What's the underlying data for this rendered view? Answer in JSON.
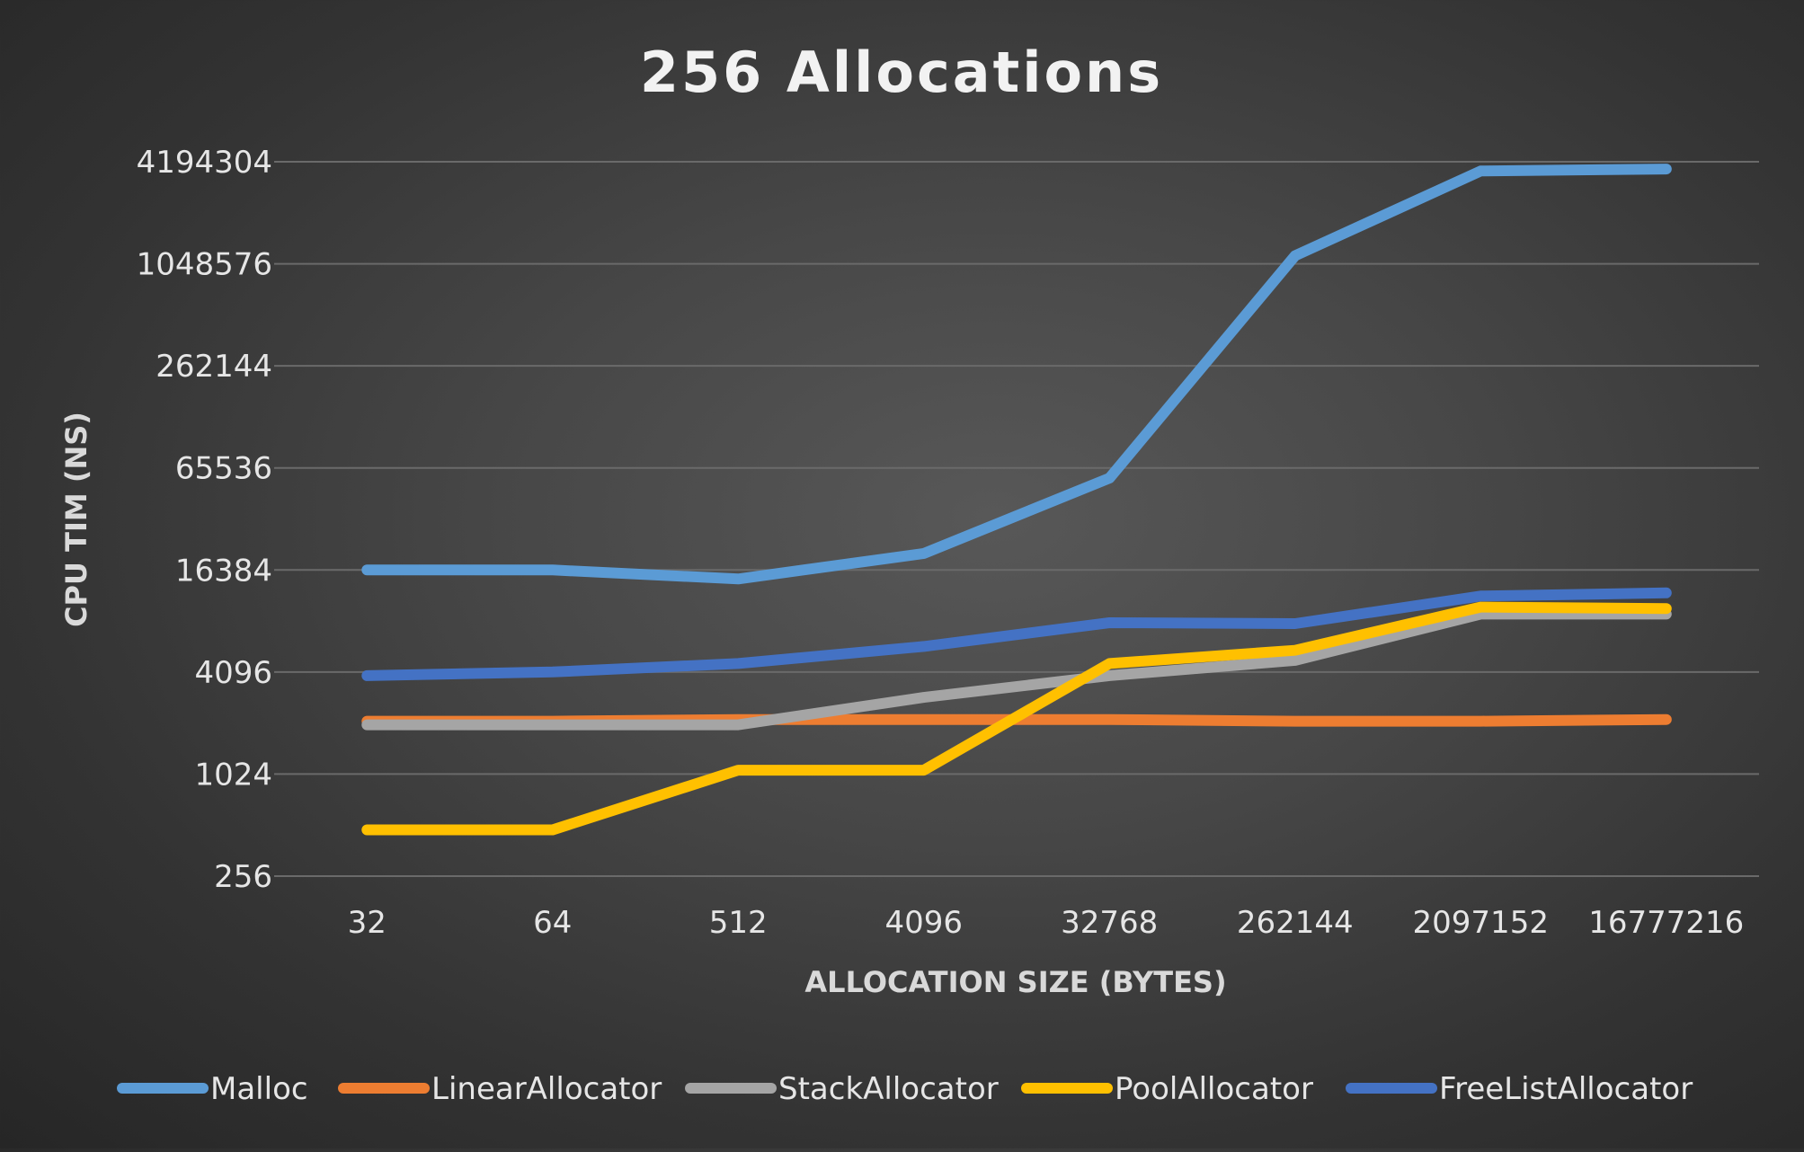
{
  "chart_data": {
    "type": "line",
    "title": "256 Allocations",
    "xlabel": "ALLOCATION SIZE (BYTES)",
    "ylabel": "CPU TIM (NS)",
    "y_scale": "log2",
    "ylim": [
      256,
      4194304
    ],
    "y_ticks": [
      "4194304",
      "1048576",
      "262144",
      "65536",
      "16384",
      "4096",
      "1024",
      "256"
    ],
    "y_tick_values": [
      4194304,
      1048576,
      262144,
      65536,
      16384,
      4096,
      1024,
      256
    ],
    "categories": [
      "32",
      "64",
      "512",
      "4096",
      "32768",
      "262144",
      "2097152",
      "16777216"
    ],
    "grid": "horizontal",
    "legend_position": "bottom",
    "series": [
      {
        "name": "Malloc",
        "color": "#5B9BD5",
        "values": [
          16384,
          16384,
          14500,
          20500,
          57000,
          1170000,
          3700000,
          3800000
        ]
      },
      {
        "name": "LinearAllocator",
        "color": "#ED7D31",
        "values": [
          2100,
          2100,
          2150,
          2150,
          2150,
          2100,
          2100,
          2150
        ]
      },
      {
        "name": "StackAllocator",
        "color": "#A5A5A5",
        "values": [
          2000,
          2000,
          2000,
          2900,
          3900,
          4800,
          9000,
          9000
        ]
      },
      {
        "name": "PoolAllocator",
        "color": "#FFC000",
        "values": [
          480,
          480,
          1080,
          1080,
          4600,
          5500,
          9900,
          9700
        ]
      },
      {
        "name": "FreeListAllocator",
        "color": "#4472C4",
        "values": [
          3900,
          4100,
          4600,
          5800,
          8000,
          7900,
          11500,
          12000
        ]
      }
    ]
  }
}
